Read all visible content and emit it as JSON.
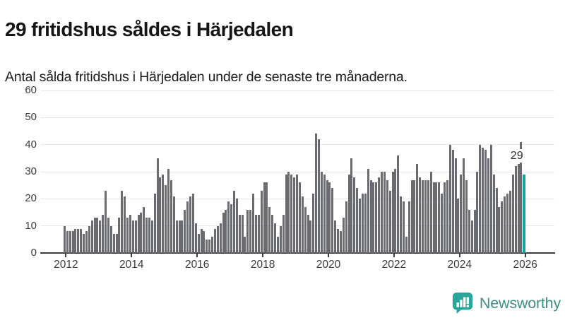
{
  "header": {
    "title": "29 fritidshus såldes i Härjedalen",
    "subtitle": "Antal sålda fritidshus i Härjedalen under de senaste tre månaderna."
  },
  "chart_data": {
    "type": "bar",
    "title": "29 fritidshus såldes i Härjedalen",
    "subtitle": "Antal sålda fritidshus i Härjedalen under de senaste tre månaderna.",
    "unit": "fritidshus (rullande tre månader)",
    "frequency": "monthly",
    "x_start": "2012-01",
    "ylim": [
      0,
      60
    ],
    "yticks": [
      0,
      10,
      20,
      30,
      40,
      50,
      60
    ],
    "xticks": [
      2012,
      2014,
      2016,
      2018,
      2020,
      2022,
      2024,
      2026
    ],
    "grid": "horizontal",
    "years": [
      {
        "year": 2012,
        "values": [
          10,
          8,
          8,
          8,
          9,
          9,
          9,
          7,
          8,
          10,
          12,
          13
        ]
      },
      {
        "year": 2013,
        "values": [
          13,
          12,
          14,
          23,
          13,
          10,
          7,
          7,
          13,
          23,
          21,
          13
        ]
      },
      {
        "year": 2014,
        "values": [
          14,
          12,
          12,
          14,
          15,
          17,
          13,
          13,
          12,
          22,
          35,
          28
        ]
      },
      {
        "year": 2015,
        "values": [
          29,
          25,
          31,
          27,
          21,
          12,
          12,
          12,
          16,
          19,
          21,
          22
        ]
      },
      {
        "year": 2016,
        "values": [
          11,
          7,
          9,
          8,
          5,
          5,
          6,
          9,
          10,
          11,
          15,
          16
        ]
      },
      {
        "year": 2017,
        "values": [
          19,
          18,
          23,
          20,
          14,
          14,
          6,
          16,
          16,
          22,
          14,
          14
        ]
      },
      {
        "year": 2018,
        "values": [
          23,
          26,
          26,
          17,
          14,
          11,
          6,
          10,
          14,
          29,
          30,
          29
        ]
      },
      {
        "year": 2019,
        "values": [
          28,
          29,
          26,
          21,
          17,
          14,
          12,
          22,
          44,
          42,
          30,
          29
        ]
      },
      {
        "year": 2020,
        "values": [
          27,
          26,
          24,
          12,
          9,
          8,
          13,
          19,
          29,
          35,
          28,
          24
        ]
      },
      {
        "year": 2021,
        "values": [
          20,
          22,
          22,
          31,
          27,
          26,
          26,
          28,
          30,
          30,
          27,
          23
        ]
      },
      {
        "year": 2022,
        "values": [
          30,
          31,
          36,
          21,
          19,
          6,
          19,
          27,
          27,
          33,
          28,
          27
        ]
      },
      {
        "year": 2023,
        "values": [
          27,
          27,
          30,
          26,
          26,
          26,
          22,
          26,
          27,
          40,
          38,
          35
        ]
      },
      {
        "year": 2024,
        "values": [
          20,
          29,
          35,
          27,
          16,
          12,
          16,
          30,
          40,
          39,
          38,
          35
        ]
      },
      {
        "year": 2025,
        "values": [
          40,
          29,
          24,
          17,
          19,
          21,
          22,
          23,
          29,
          32,
          33,
          41
        ]
      },
      {
        "year": 2026,
        "values": [
          29
        ],
        "highlight": true
      }
    ],
    "highlight_value": 29,
    "annotation": {
      "text": "29"
    },
    "colors": {
      "bar": "#6a6a71",
      "highlight": "#0ba69d",
      "grid": "#e7e7e7",
      "axis": "#3d3d3d"
    },
    "legend": "none"
  },
  "footer": {
    "brand": "Newsworthy",
    "logo_icon": "newsworthy-speech-bubble-chart-icon",
    "brand_color": "#3f8c84",
    "bubble_color": "#29a69c"
  }
}
